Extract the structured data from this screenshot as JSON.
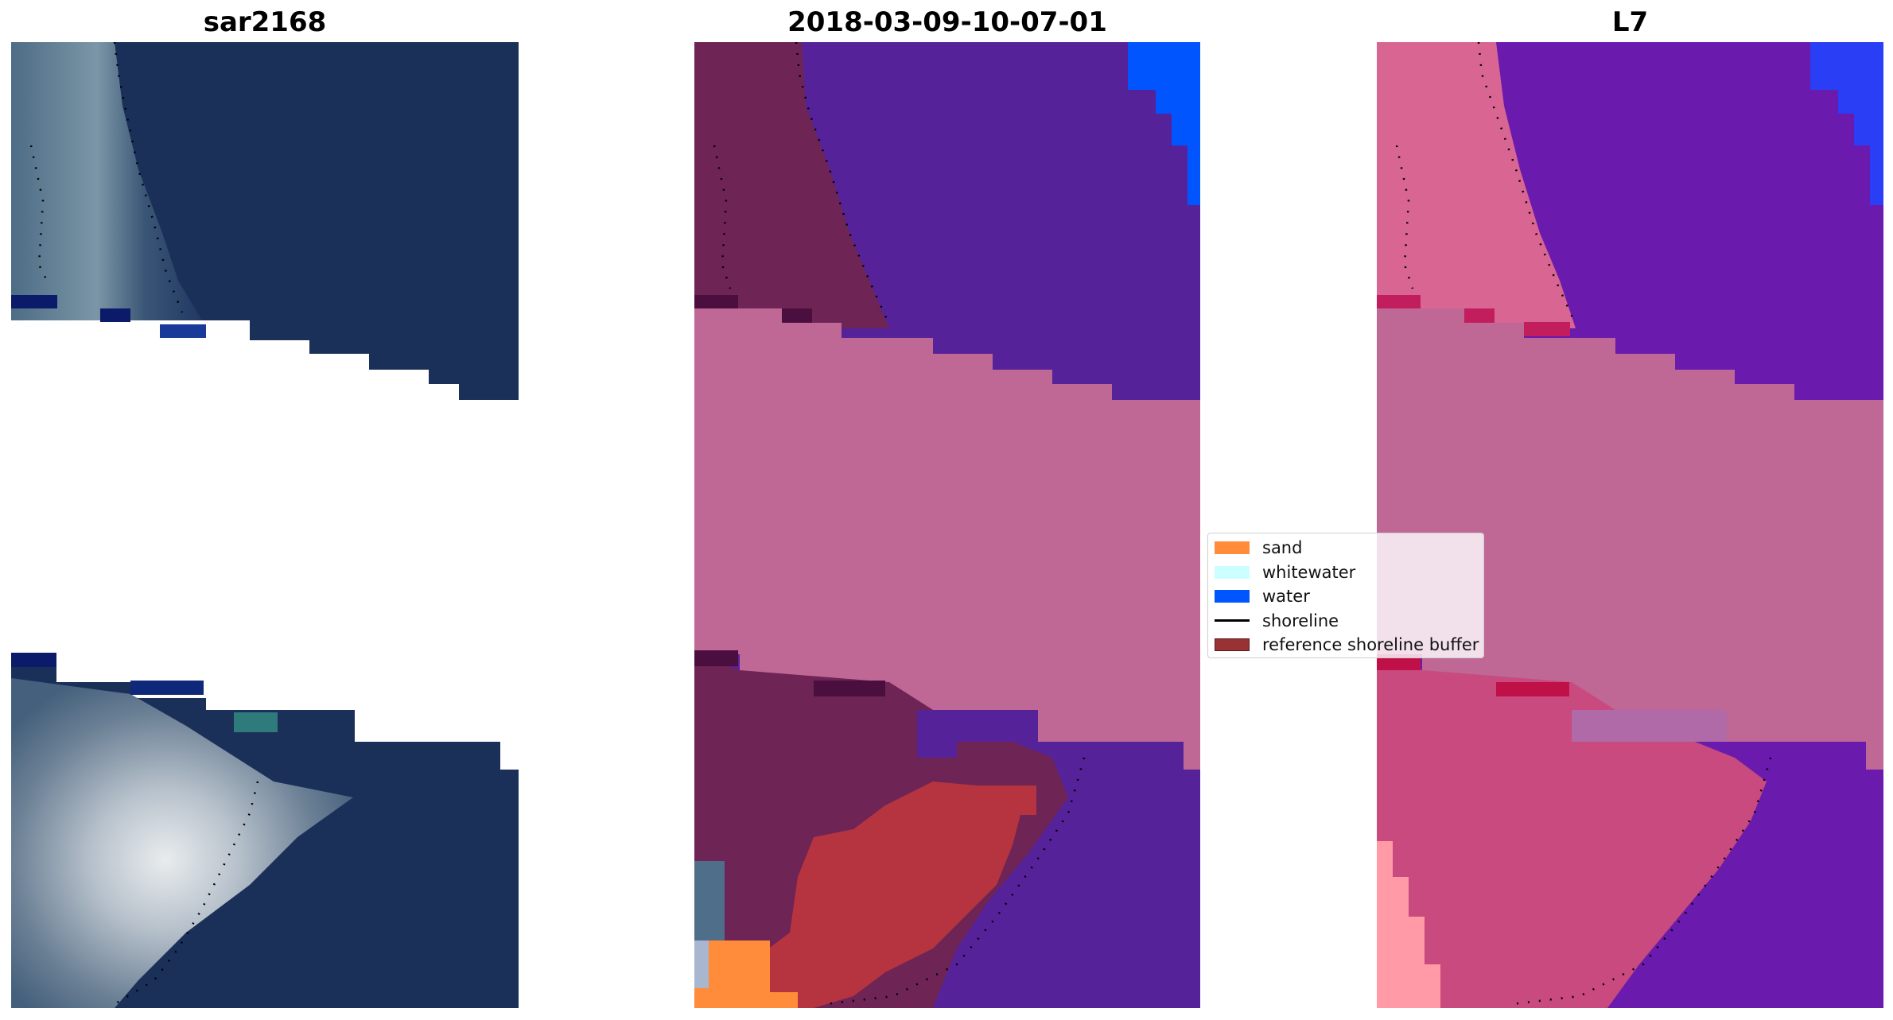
{
  "figure": {
    "panels": [
      {
        "id": "rgb",
        "title": "sar2168"
      },
      {
        "id": "classified",
        "title": "2018-03-09-10-07-01"
      },
      {
        "id": "index",
        "title": "L7"
      }
    ]
  },
  "legend": {
    "items": [
      {
        "label": "sand",
        "kind": "patch",
        "color": "#ff8c3a"
      },
      {
        "label": "whitewater",
        "kind": "patch",
        "color": "#ccffff"
      },
      {
        "label": "water",
        "kind": "patch",
        "color": "#0055ff"
      },
      {
        "label": "shoreline",
        "kind": "line",
        "color": "#000000"
      },
      {
        "label": "reference shoreline buffer",
        "kind": "patch",
        "color": "#993333"
      }
    ]
  },
  "colors": {
    "cloud_mask": "#bf6896",
    "rgb_water": "#1a2f5a",
    "classified_water": "#55229a",
    "classified_land": "#6e2454",
    "index_water": "#6a1aad",
    "index_land": "#c84a7e"
  }
}
